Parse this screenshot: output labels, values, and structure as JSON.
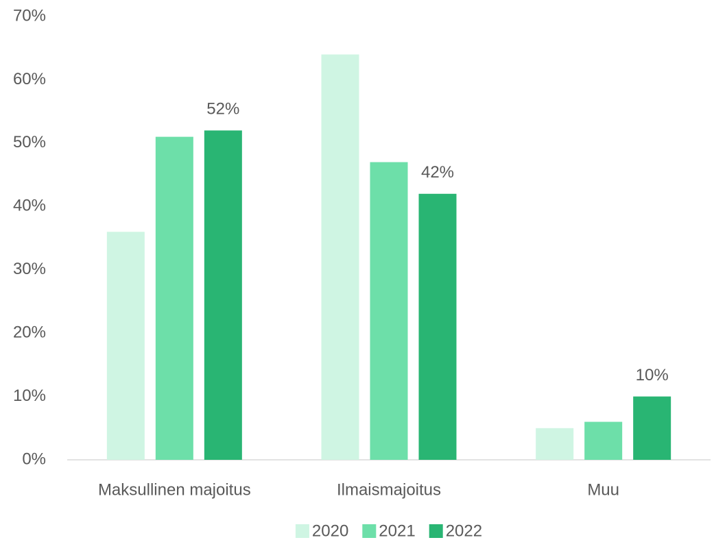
{
  "chart_data": {
    "type": "bar",
    "categories": [
      "Maksullinen majoitus",
      "Ilmaismajoitus",
      "Muu"
    ],
    "series": [
      {
        "name": "2020",
        "color": "#cff5e3",
        "values": [
          36,
          64,
          5
        ]
      },
      {
        "name": "2021",
        "color": "#6ddfa9",
        "values": [
          51,
          47,
          6
        ]
      },
      {
        "name": "2022",
        "color": "#29b573",
        "values": [
          52,
          42,
          10
        ],
        "value_labels": [
          "52%",
          "42%",
          "10%"
        ]
      }
    ],
    "ylim": [
      0,
      70
    ],
    "yticks": [
      {
        "value": 0,
        "label": "0%"
      },
      {
        "value": 10,
        "label": "10%"
      },
      {
        "value": 20,
        "label": "20%"
      },
      {
        "value": 30,
        "label": "30%"
      },
      {
        "value": 40,
        "label": "40%"
      },
      {
        "value": 50,
        "label": "50%"
      },
      {
        "value": 60,
        "label": "60%"
      },
      {
        "value": 70,
        "label": "70%"
      }
    ],
    "grid": false,
    "legend": "bottom"
  }
}
